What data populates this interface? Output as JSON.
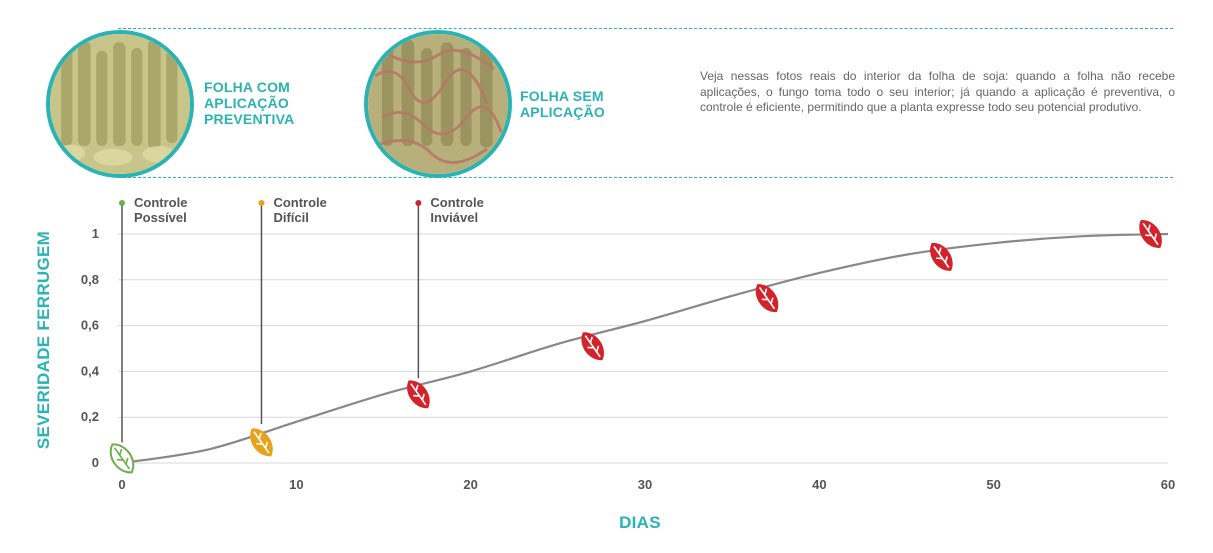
{
  "header": {
    "photo_left_label": [
      "FOLHA COM",
      "APLICAÇÃO",
      "PREVENTIVA"
    ],
    "photo_right_label": [
      "FOLHA SEM",
      "APLICAÇÃO"
    ],
    "description": "Veja nessas fotos reais do interior da folha de soja: quando a folha não recebe aplicações, o fungo toma todo o seu interior; já quando a aplicação é preventiva, o controle é eficiente, permitindo que a planta expresse todo seu potencial produtivo."
  },
  "colors": {
    "accent": "#2bb3b3",
    "possible": "#6ab04c",
    "difficult": "#e8a21a",
    "unviable": "#d3222a",
    "curve": "#888888"
  },
  "chart_data": {
    "type": "line",
    "xlabel": "DIAS",
    "ylabel": "SEVERIDADE FERRUGEM",
    "xlim": [
      0,
      60
    ],
    "ylim": [
      0,
      1
    ],
    "x_ticks": [
      0,
      10,
      20,
      30,
      40,
      50,
      60
    ],
    "x_tick_labels": [
      "0",
      "10",
      "20",
      "30",
      "40",
      "50",
      "60"
    ],
    "y_ticks": [
      0,
      0.2,
      0.4,
      0.6,
      0.8,
      1
    ],
    "y_tick_labels": [
      "0",
      "0,2",
      "0,4",
      "0,6",
      "0,8",
      "1"
    ],
    "grid": true,
    "series": [
      {
        "x": [
          0,
          5,
          10,
          15,
          20,
          25,
          30,
          35,
          40,
          45,
          50,
          55,
          60
        ],
        "y": [
          0,
          0.06,
          0.18,
          0.3,
          0.4,
          0.52,
          0.62,
          0.73,
          0.83,
          0.91,
          0.96,
          0.99,
          1.0
        ]
      }
    ],
    "leaf_markers": [
      {
        "x": 0,
        "y": 0.02,
        "stage": "possible"
      },
      {
        "x": 8,
        "y": 0.09,
        "stage": "difficult"
      },
      {
        "x": 17,
        "y": 0.3,
        "stage": "unviable"
      },
      {
        "x": 27,
        "y": 0.51,
        "stage": "unviable"
      },
      {
        "x": 37,
        "y": 0.72,
        "stage": "unviable"
      },
      {
        "x": 47,
        "y": 0.9,
        "stage": "unviable"
      },
      {
        "x": 59,
        "y": 1.0,
        "stage": "unviable"
      }
    ],
    "annotations": [
      {
        "x": 0,
        "y": 0.02,
        "lines": [
          "Controle",
          "Possível"
        ],
        "stage": "possible"
      },
      {
        "x": 8,
        "y": 0.1,
        "lines": [
          "Controle",
          "Difícil"
        ],
        "stage": "difficult"
      },
      {
        "x": 17,
        "y": 0.3,
        "lines": [
          "Controle",
          "Inviável"
        ],
        "stage": "unviable"
      }
    ]
  }
}
